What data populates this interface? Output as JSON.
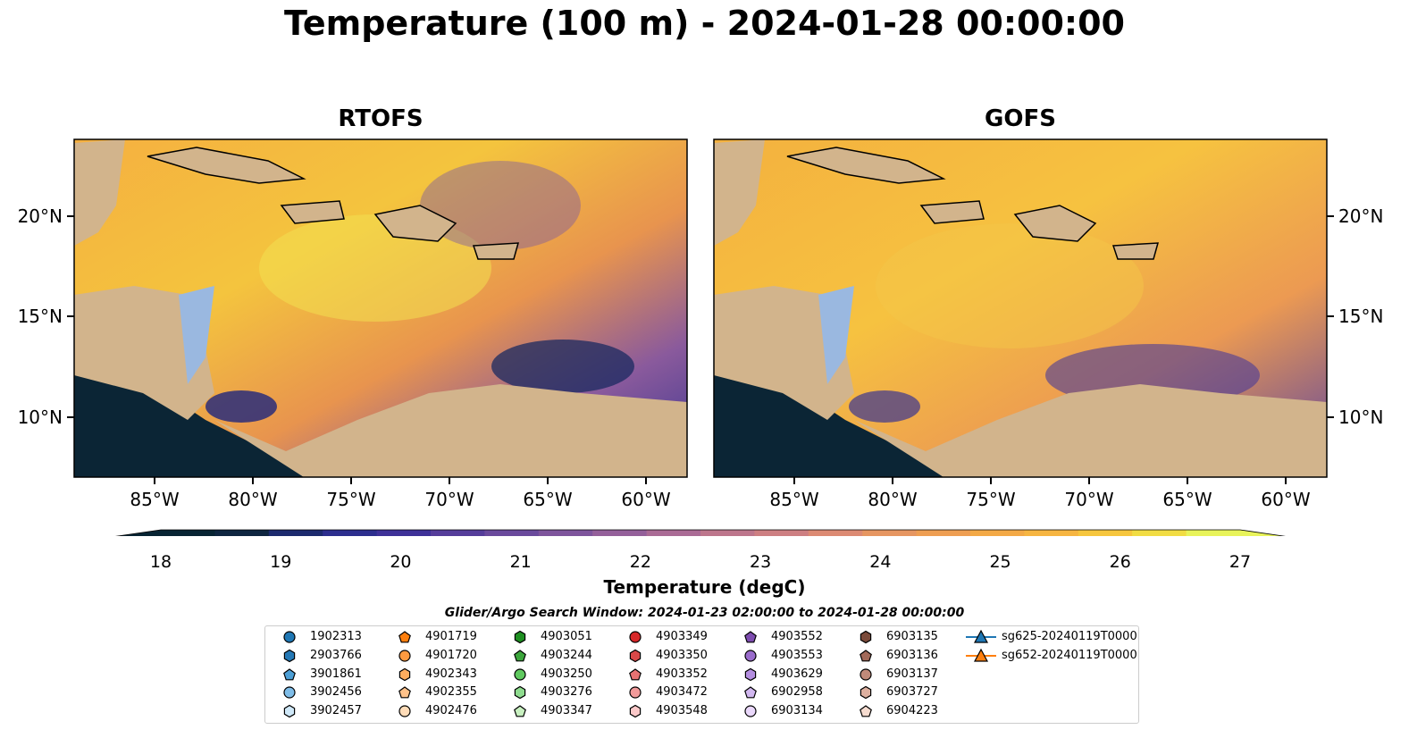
{
  "title": "Temperature (100 m) - 2024-01-28 00:00:00",
  "panels": [
    {
      "title": "RTOFS"
    },
    {
      "title": "GOFS"
    }
  ],
  "lon_ticks": [
    "85°W",
    "80°W",
    "75°W",
    "70°W",
    "65°W",
    "60°W"
  ],
  "lat_ticks": [
    "20°N",
    "15°N",
    "10°N"
  ],
  "colorbar": {
    "label": "Temperature (degC)",
    "ticks": [
      "18",
      "19",
      "20",
      "21",
      "22",
      "23",
      "24",
      "25",
      "26",
      "27"
    ],
    "colors": [
      "#072433",
      "#0e2540",
      "#1c2a6e",
      "#2c2e8e",
      "#3e3198",
      "#553d9a",
      "#6a4a9c",
      "#7e559c",
      "#94609a",
      "#aa6b95",
      "#bd768c",
      "#cd7f82",
      "#dc8a73",
      "#e69661",
      "#ee9e52",
      "#f3a946",
      "#f6b541",
      "#f6c63d",
      "#f1dc43",
      "#e8f35a"
    ]
  },
  "search_window": "Glider/Argo Search Window: 2024-01-23 02:00:00 to 2024-01-28 00:00:00",
  "legend": [
    {
      "label": "1902313",
      "marker": "circle",
      "color": "#1f77b4"
    },
    {
      "label": "2903766",
      "marker": "hexagon",
      "color": "#2478b5"
    },
    {
      "label": "3901861",
      "marker": "pentagon",
      "color": "#4c9fd6"
    },
    {
      "label": "3902456",
      "marker": "circle",
      "color": "#7fbde8"
    },
    {
      "label": "3902457",
      "marker": "hexagon",
      "color": "#cfe8f8"
    },
    {
      "label": "4901719",
      "marker": "pentagon",
      "color": "#ff7f0e"
    },
    {
      "label": "4901720",
      "marker": "circle",
      "color": "#ff9a40"
    },
    {
      "label": "4902343",
      "marker": "hexagon",
      "color": "#ffad5e"
    },
    {
      "label": "4902355",
      "marker": "pentagon",
      "color": "#ffc28a"
    },
    {
      "label": "4902476",
      "marker": "circle",
      "color": "#ffdcb8"
    },
    {
      "label": "4903051",
      "marker": "hexagon",
      "color": "#1f8f22"
    },
    {
      "label": "4903244",
      "marker": "pentagon",
      "color": "#3ca63c"
    },
    {
      "label": "4903250",
      "marker": "circle",
      "color": "#5fc95f"
    },
    {
      "label": "4903276",
      "marker": "hexagon",
      "color": "#8fdc8f"
    },
    {
      "label": "4903347",
      "marker": "pentagon",
      "color": "#c8f0c0"
    },
    {
      "label": "4903349",
      "marker": "circle",
      "color": "#d62728"
    },
    {
      "label": "4903350",
      "marker": "hexagon",
      "color": "#d94848"
    },
    {
      "label": "4903352",
      "marker": "pentagon",
      "color": "#e87272"
    },
    {
      "label": "4903472",
      "marker": "circle",
      "color": "#f19a9a"
    },
    {
      "label": "4903548",
      "marker": "hexagon",
      "color": "#fac8c8"
    },
    {
      "label": "4903552",
      "marker": "pentagon",
      "color": "#7e4db0"
    },
    {
      "label": "4903553",
      "marker": "circle",
      "color": "#9a6ccc"
    },
    {
      "label": "4903629",
      "marker": "hexagon",
      "color": "#b48ee0"
    },
    {
      "label": "6902958",
      "marker": "pentagon",
      "color": "#d2b8f0"
    },
    {
      "label": "6903134",
      "marker": "circle",
      "color": "#ead8fb"
    },
    {
      "label": "6903135",
      "marker": "hexagon",
      "color": "#7a4a3a"
    },
    {
      "label": "6903136",
      "marker": "pentagon",
      "color": "#a26a5a"
    },
    {
      "label": "6903137",
      "marker": "circle",
      "color": "#c08a7a"
    },
    {
      "label": "6903727",
      "marker": "hexagon",
      "color": "#ddb0a0"
    },
    {
      "label": "6904223",
      "marker": "pentagon",
      "color": "#f6dcd0"
    },
    {
      "label": "sg625-20240119T0000",
      "marker": "triangle",
      "color": "#1f77b4"
    },
    {
      "label": "sg652-20240119T0000",
      "marker": "triangle",
      "color": "#ff7f0e"
    }
  ]
}
